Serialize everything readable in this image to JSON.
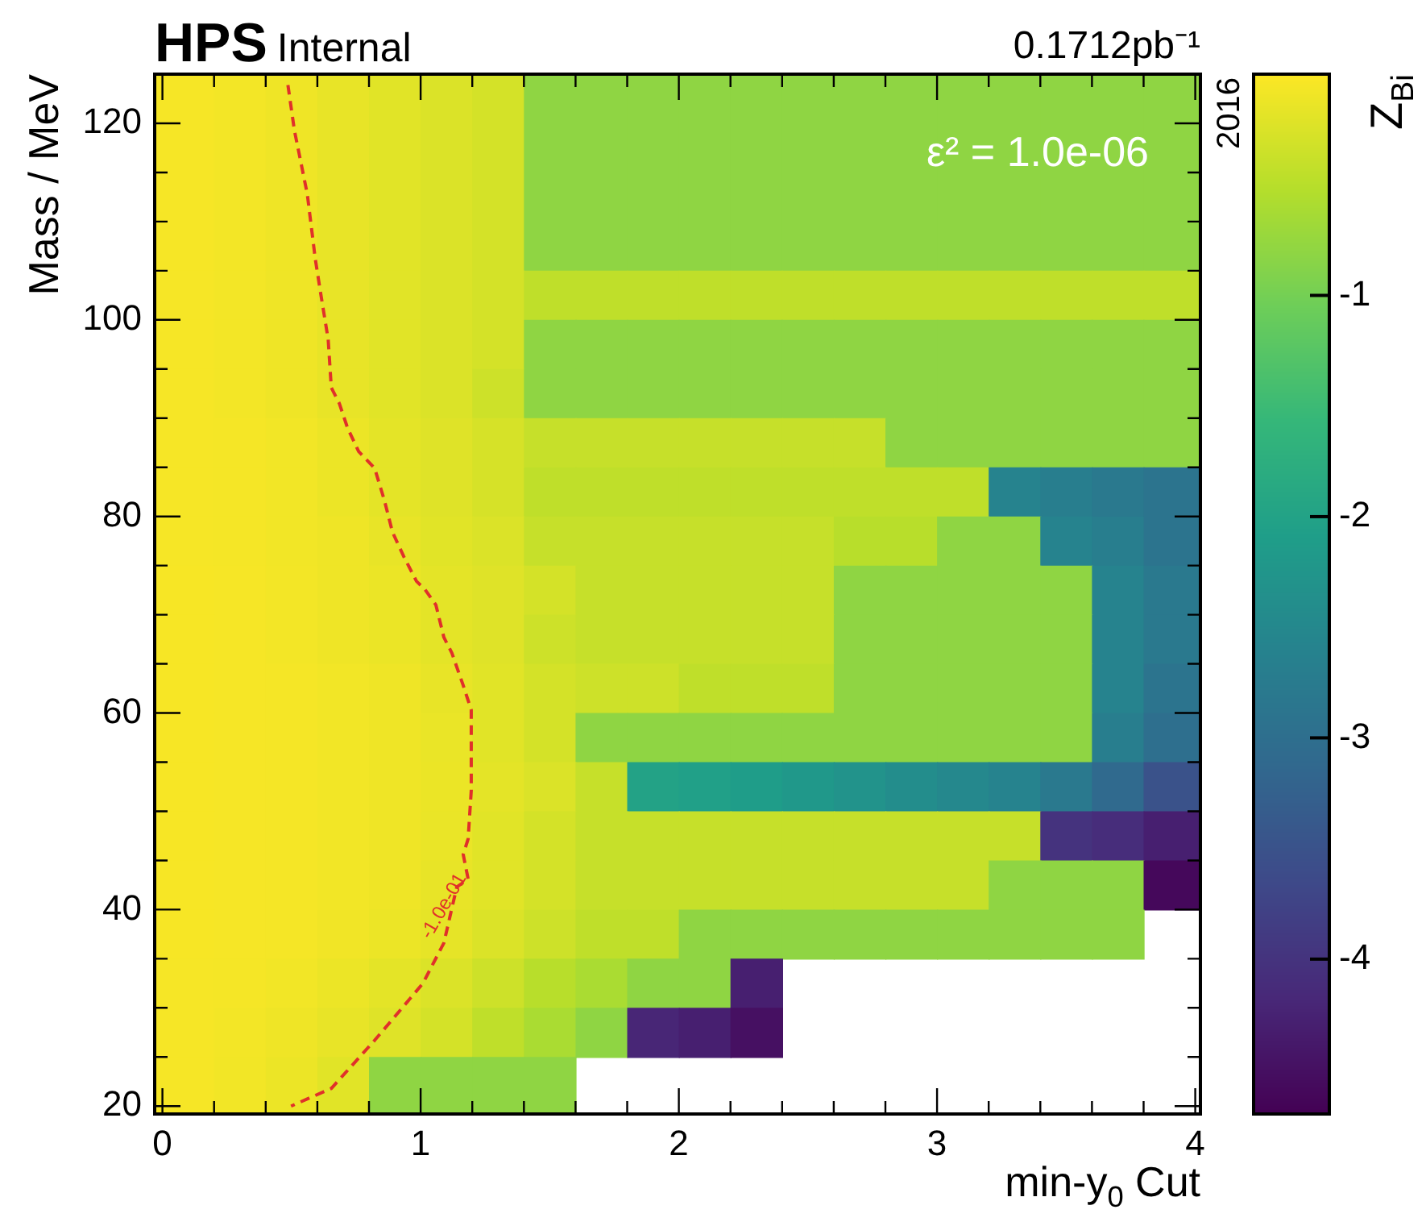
{
  "chart_data": {
    "type": "heatmap",
    "title": "HPS",
    "subtitle": "Internal",
    "xlabel": "min-y$_{0}$ Cut",
    "ylabel": "Mass / MeV",
    "clabel": "Z$_{Bi}$",
    "x": [
      0.1,
      0.3,
      0.5,
      0.7,
      0.9,
      1.1,
      1.3,
      1.5,
      1.7,
      1.9,
      2.1,
      2.3,
      2.5,
      2.7,
      2.9,
      3.1,
      3.3,
      3.5,
      3.7,
      3.9
    ],
    "y": [
      122.5,
      117.5,
      112.5,
      107.5,
      102.5,
      97.5,
      92.5,
      87.5,
      82.5,
      77.5,
      72.5,
      67.5,
      62.5,
      57.5,
      52.5,
      47.5,
      42.5,
      37.5,
      32.5,
      27.5,
      22.5
    ],
    "cells": [
      [
        -0.05,
        -0.07,
        -0.1,
        -0.15,
        -0.2,
        -0.25,
        -0.3,
        -0.8,
        -0.8,
        -0.8,
        -0.8,
        -0.8,
        -0.8,
        -0.8,
        -0.8,
        -0.8,
        -0.8,
        -0.8,
        -0.8,
        -0.8
      ],
      [
        -0.05,
        -0.07,
        -0.1,
        -0.15,
        -0.2,
        -0.25,
        -0.3,
        -0.8,
        -0.8,
        -0.8,
        -0.8,
        -0.8,
        -0.8,
        -0.8,
        -0.8,
        -0.8,
        -0.8,
        -0.8,
        -0.8,
        -0.8
      ],
      [
        -0.05,
        -0.07,
        -0.1,
        -0.15,
        -0.2,
        -0.25,
        -0.3,
        -0.8,
        -0.8,
        -0.8,
        -0.8,
        -0.8,
        -0.8,
        -0.8,
        -0.8,
        -0.8,
        -0.8,
        -0.8,
        -0.8,
        -0.8
      ],
      [
        -0.05,
        -0.07,
        -0.1,
        -0.15,
        -0.2,
        -0.25,
        -0.3,
        -0.8,
        -0.8,
        -0.8,
        -0.8,
        -0.8,
        -0.8,
        -0.8,
        -0.8,
        -0.8,
        -0.8,
        -0.8,
        -0.8,
        -0.8
      ],
      [
        -0.05,
        -0.07,
        -0.1,
        -0.15,
        -0.2,
        -0.25,
        -0.3,
        -0.45,
        -0.45,
        -0.45,
        -0.45,
        -0.45,
        -0.45,
        -0.45,
        -0.45,
        -0.45,
        -0.45,
        -0.45,
        -0.45,
        -0.45
      ],
      [
        -0.05,
        -0.07,
        -0.1,
        -0.15,
        -0.2,
        -0.25,
        -0.3,
        -0.8,
        -0.8,
        -0.8,
        -0.8,
        -0.8,
        -0.8,
        -0.8,
        -0.8,
        -0.8,
        -0.8,
        -0.8,
        -0.8,
        -0.8
      ],
      [
        -0.05,
        -0.07,
        -0.1,
        -0.15,
        -0.2,
        -0.25,
        -0.35,
        -0.8,
        -0.8,
        -0.8,
        -0.8,
        -0.8,
        -0.8,
        -0.8,
        -0.8,
        -0.8,
        -0.8,
        -0.8,
        -0.8,
        -0.8
      ],
      [
        -0.05,
        -0.06,
        -0.08,
        -0.12,
        -0.18,
        -0.22,
        -0.28,
        -0.4,
        -0.4,
        -0.4,
        -0.4,
        -0.4,
        -0.4,
        -0.4,
        -0.8,
        -0.8,
        -0.8,
        -0.8,
        -0.8,
        -0.8
      ],
      [
        -0.05,
        -0.06,
        -0.08,
        -0.12,
        -0.18,
        -0.22,
        -0.28,
        -0.45,
        -0.45,
        -0.45,
        -0.45,
        -0.45,
        -0.45,
        -0.45,
        -0.45,
        -0.45,
        -2.6,
        -2.7,
        -2.8,
        -2.9
      ],
      [
        -0.05,
        -0.06,
        -0.08,
        -0.1,
        -0.15,
        -0.2,
        -0.25,
        -0.4,
        -0.4,
        -0.4,
        -0.4,
        -0.4,
        -0.4,
        -0.5,
        -0.5,
        -0.8,
        -0.8,
        -2.6,
        -2.7,
        -2.9
      ],
      [
        -0.04,
        -0.05,
        -0.07,
        -0.1,
        -0.13,
        -0.18,
        -0.22,
        -0.3,
        -0.4,
        -0.4,
        -0.4,
        -0.4,
        -0.4,
        -0.8,
        -0.8,
        -0.8,
        -0.8,
        -0.8,
        -2.6,
        -2.8
      ],
      [
        -0.04,
        -0.05,
        -0.07,
        -0.1,
        -0.13,
        -0.18,
        -0.22,
        -0.35,
        -0.4,
        -0.4,
        -0.4,
        -0.4,
        -0.4,
        -0.8,
        -0.8,
        -0.8,
        -0.8,
        -0.8,
        -2.6,
        -2.8
      ],
      [
        -0.04,
        -0.05,
        -0.06,
        -0.08,
        -0.1,
        -0.15,
        -0.2,
        -0.3,
        -0.35,
        -0.35,
        -0.45,
        -0.45,
        -0.45,
        -0.8,
        -0.8,
        -0.8,
        -0.8,
        -0.8,
        -2.6,
        -2.9
      ],
      [
        -0.04,
        -0.05,
        -0.06,
        -0.08,
        -0.1,
        -0.14,
        -0.2,
        -0.3,
        -0.8,
        -0.8,
        -0.8,
        -0.8,
        -0.8,
        -0.8,
        -0.8,
        -0.8,
        -0.8,
        -0.8,
        -2.7,
        -3.0
      ],
      [
        -0.04,
        -0.05,
        -0.06,
        -0.08,
        -0.1,
        -0.13,
        -0.18,
        -0.25,
        -0.4,
        -2.0,
        -2.05,
        -2.1,
        -2.2,
        -2.3,
        -2.4,
        -2.5,
        -2.6,
        -2.8,
        -3.1,
        -3.5
      ],
      [
        -0.04,
        -0.05,
        -0.06,
        -0.08,
        -0.1,
        -0.14,
        -0.2,
        -0.3,
        -0.4,
        -0.4,
        -0.4,
        -0.4,
        -0.4,
        -0.4,
        -0.4,
        -0.4,
        -0.4,
        -4.0,
        -4.1,
        -4.3
      ],
      [
        -0.04,
        -0.05,
        -0.06,
        -0.08,
        -0.1,
        -0.15,
        -0.2,
        -0.3,
        -0.4,
        -0.4,
        -0.4,
        -0.4,
        -0.4,
        -0.4,
        -0.4,
        -0.4,
        -0.8,
        -0.8,
        -0.8,
        -4.6
      ],
      [
        -0.04,
        -0.05,
        -0.06,
        -0.09,
        -0.12,
        -0.17,
        -0.25,
        -0.35,
        -0.45,
        -0.45,
        -0.8,
        -0.8,
        -0.8,
        -0.8,
        -0.8,
        -0.8,
        -0.8,
        -0.8,
        -0.8,
        null
      ],
      [
        -0.05,
        -0.06,
        -0.08,
        -0.12,
        -0.18,
        -0.25,
        -0.35,
        -0.5,
        -0.6,
        -0.8,
        -0.8,
        -4.3,
        null,
        null,
        null,
        null,
        null,
        null,
        null,
        null
      ],
      [
        -0.05,
        -0.07,
        -0.1,
        -0.15,
        -0.22,
        -0.3,
        -0.45,
        -0.6,
        -0.8,
        -4.2,
        -4.3,
        -4.5,
        null,
        null,
        null,
        null,
        null,
        null,
        null,
        null
      ],
      [
        -0.05,
        -0.08,
        -0.12,
        -0.2,
        -0.8,
        -0.8,
        -0.8,
        -0.8,
        null,
        null,
        null,
        null,
        null,
        null,
        null,
        null,
        null,
        null,
        null,
        null
      ]
    ],
    "series": [
      {
        "type": "line",
        "color": "#e0302a",
        "line_style": "dashed",
        "x": [
          0.486,
          0.511,
          0.561,
          0.592,
          0.611,
          0.642,
          0.654,
          0.685,
          0.717,
          0.76,
          0.822,
          0.86,
          0.891,
          0.935,
          0.984,
          1.016,
          1.059,
          1.09,
          1.121,
          1.165,
          1.196,
          1.196,
          1.196,
          1.184,
          1.165,
          1.184,
          1.14,
          1.09,
          1.009,
          0.903,
          0.822,
          0.654,
          0.498
        ],
        "values": [
          123.9,
          119.3,
          112.8,
          106.2,
          103.0,
          98.0,
          93.1,
          91.5,
          89.0,
          86.6,
          84.9,
          81.6,
          78.4,
          75.9,
          73.4,
          72.6,
          71.0,
          67.7,
          66.1,
          62.8,
          60.3,
          55.4,
          52.1,
          47.2,
          45.6,
          43.1,
          42.3,
          36.6,
          32.5,
          29.2,
          26.7,
          21.8,
          20.0
        ]
      }
    ],
    "xlim": [
      -0.03,
      4.02
    ],
    "xticks": [
      0,
      {
        "value": 0.2,
        "label": null
      },
      {
        "value": 0.4,
        "label": null
      },
      {
        "value": 0.6,
        "label": null
      },
      {
        "value": 0.8,
        "label": null
      },
      1,
      {
        "value": 1.2,
        "label": null
      },
      {
        "value": 1.4,
        "label": null
      },
      {
        "value": 1.6,
        "label": null
      },
      {
        "value": 1.8,
        "label": null
      },
      2,
      {
        "value": 2.2,
        "label": null
      },
      {
        "value": 2.4,
        "label": null
      },
      {
        "value": 2.6,
        "label": null
      },
      {
        "value": 2.8,
        "label": null
      },
      3,
      {
        "value": 3.2,
        "label": null
      },
      {
        "value": 3.4,
        "label": null
      },
      {
        "value": 3.6,
        "label": null
      },
      {
        "value": 3.8,
        "label": null
      },
      4
    ],
    "ylim": [
      19.2,
      125
    ],
    "yticks": [
      20,
      {
        "value": 25,
        "label": null
      },
      {
        "value": 30,
        "label": null
      },
      {
        "value": 35,
        "label": null
      },
      40,
      {
        "value": 45,
        "label": null
      },
      {
        "value": 50,
        "label": null
      },
      {
        "value": 55,
        "label": null
      },
      60,
      {
        "value": 65,
        "label": null
      },
      {
        "value": 70,
        "label": null
      },
      {
        "value": 75,
        "label": null
      },
      80,
      {
        "value": 85,
        "label": null
      },
      {
        "value": 90,
        "label": null
      },
      {
        "value": 95,
        "label": null
      },
      100,
      {
        "value": 105,
        "label": null
      },
      {
        "value": 110,
        "label": null
      },
      {
        "value": 115,
        "label": null
      },
      120,
      {
        "value": 125,
        "label": null
      }
    ],
    "clim": [
      -4.7,
      0
    ],
    "cticks": [
      -1,
      -2,
      -3,
      -4
    ],
    "annotations": [
      "0.1712pb⁻¹",
      "ε² = 1.0e-06",
      "2016",
      "-1.0e-01"
    ]
  }
}
